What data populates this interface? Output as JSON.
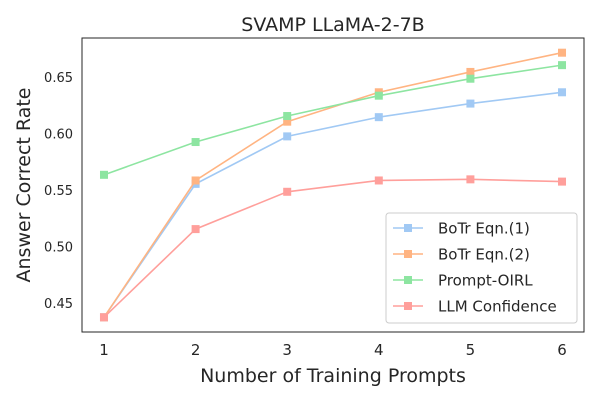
{
  "chart_data": {
    "type": "line",
    "title": "SVAMP LLaMA-2-7B",
    "xlabel": "Number of Training Prompts",
    "ylabel": "Answer Correct Rate",
    "x": [
      1,
      2,
      3,
      4,
      5,
      6
    ],
    "xlim": [
      0.76,
      6.24
    ],
    "ylim": [
      0.425,
      0.685
    ],
    "yticks": [
      0.45,
      0.5,
      0.55,
      0.6,
      0.65
    ],
    "ytick_labels": [
      "0.45",
      "0.50",
      "0.55",
      "0.60",
      "0.65"
    ],
    "xtick_labels": [
      "1",
      "2",
      "3",
      "4",
      "5",
      "6"
    ],
    "legend_position": "lower-right",
    "grid": false,
    "series": [
      {
        "name": "BoTr Eqn.(1)",
        "color": "#a1c9f4",
        "values": [
          0.438,
          0.556,
          0.598,
          0.615,
          0.627,
          0.637
        ]
      },
      {
        "name": "BoTr Eqn.(2)",
        "color": "#ffb482",
        "values": [
          0.438,
          0.559,
          0.611,
          0.637,
          0.655,
          0.672
        ]
      },
      {
        "name": "Prompt-OIRL",
        "color": "#8de5a1",
        "values": [
          0.564,
          0.593,
          0.616,
          0.634,
          0.649,
          0.661
        ]
      },
      {
        "name": "LLM Confidence",
        "color": "#ff9f9b",
        "values": [
          0.438,
          0.516,
          0.549,
          0.559,
          0.56,
          0.558
        ]
      }
    ]
  }
}
